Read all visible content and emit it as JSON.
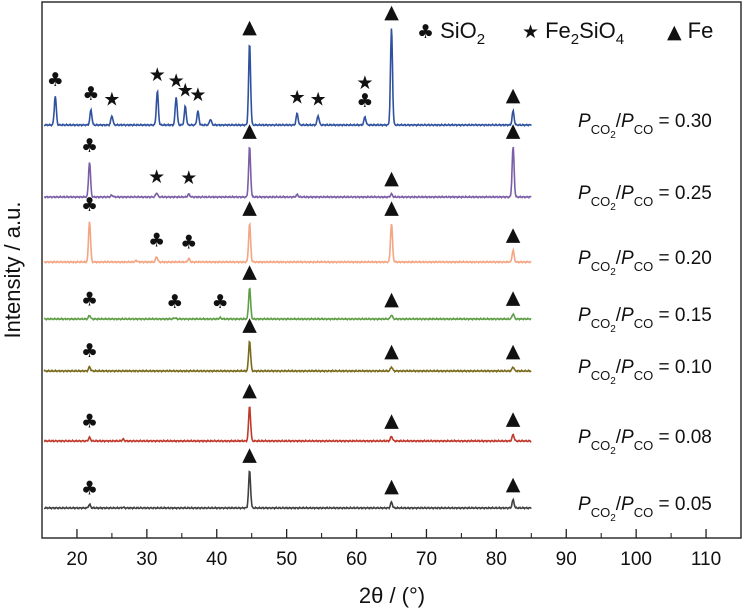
{
  "chart_data": {
    "type": "line",
    "xlabel": "2θ / (°)",
    "ylabel": "Intensity / a.u.",
    "xlim": [
      15,
      115
    ],
    "x_ticks": [
      20,
      30,
      40,
      50,
      60,
      70,
      80,
      90,
      100,
      110
    ],
    "legend": {
      "position": "top-right",
      "entries": [
        {
          "symbol": "♣",
          "label": "SiO",
          "sub": "2"
        },
        {
          "symbol": "★",
          "label": "Fe",
          "sub": "2",
          "label2": "SiO",
          "sub2": "4"
        },
        {
          "symbol": "▲",
          "label": "Fe"
        }
      ]
    },
    "series": [
      {
        "ratio": "0.05",
        "color": "#404040",
        "peaks": [
          [
            21.8,
            0.3
          ],
          [
            26.6,
            0.06
          ],
          [
            44.7,
            3.2
          ],
          [
            65.0,
            0.5
          ],
          [
            82.4,
            0.7
          ]
        ],
        "markers": [
          [
            "club",
            21.8
          ],
          [
            "triangle",
            44.7
          ],
          [
            "triangle",
            65.0
          ],
          [
            "triangle",
            82.4
          ]
        ]
      },
      {
        "ratio": "0.08",
        "color": "#c0392b",
        "peaks": [
          [
            21.8,
            0.3
          ],
          [
            26.6,
            0.15
          ],
          [
            44.7,
            3.0
          ],
          [
            65.0,
            0.4
          ],
          [
            82.4,
            0.55
          ]
        ],
        "markers": [
          [
            "club",
            21.8
          ],
          [
            "triangle",
            44.7
          ],
          [
            "triangle",
            65.0
          ],
          [
            "triangle",
            82.4
          ]
        ]
      },
      {
        "ratio": "0.10",
        "color": "#7a6a1a",
        "peaks": [
          [
            21.8,
            0.35
          ],
          [
            44.7,
            2.6
          ],
          [
            65.0,
            0.35
          ],
          [
            82.4,
            0.35
          ]
        ],
        "markers": [
          [
            "club",
            21.8
          ],
          [
            "triangle",
            44.7
          ],
          [
            "triangle",
            65.0
          ],
          [
            "triangle",
            82.4
          ]
        ]
      },
      {
        "ratio": "0.15",
        "color": "#5e9e45",
        "peaks": [
          [
            21.8,
            0.3
          ],
          [
            34.0,
            0.1
          ],
          [
            40.5,
            0.1
          ],
          [
            44.7,
            2.7
          ],
          [
            65.0,
            0.35
          ],
          [
            82.4,
            0.45
          ]
        ],
        "markers": [
          [
            "club",
            21.8
          ],
          [
            "club",
            34.0
          ],
          [
            "club",
            40.5
          ],
          [
            "triangle",
            44.7
          ],
          [
            "triangle",
            65.0
          ],
          [
            "triangle",
            82.4
          ]
        ]
      },
      {
        "ratio": "0.20",
        "color": "#f4a582",
        "peaks": [
          [
            21.8,
            3.5
          ],
          [
            28.5,
            0.12
          ],
          [
            31.4,
            0.45
          ],
          [
            36.0,
            0.3
          ],
          [
            44.7,
            3.3
          ],
          [
            65.0,
            3.3
          ],
          [
            82.4,
            1.0
          ]
        ],
        "markers": [
          [
            "club",
            21.8
          ],
          [
            "club",
            31.4
          ],
          [
            "club",
            36.0
          ],
          [
            "triangle",
            44.7
          ],
          [
            "triangle",
            65.0
          ],
          [
            "triangle",
            82.4
          ]
        ]
      },
      {
        "ratio": "0.25",
        "color": "#7b5ea7",
        "peaks": [
          [
            21.8,
            3.0
          ],
          [
            25.0,
            0.15
          ],
          [
            31.4,
            0.35
          ],
          [
            36.0,
            0.25
          ],
          [
            44.7,
            4.3
          ],
          [
            51.5,
            0.2
          ],
          [
            65.0,
            0.25
          ],
          [
            82.4,
            4.3
          ]
        ],
        "markers": [
          [
            "club",
            21.8
          ],
          [
            "star",
            31.4
          ],
          [
            "star",
            36.0
          ],
          [
            "triangle",
            44.7
          ],
          [
            "triangle",
            65.0
          ],
          [
            "triangle",
            82.4
          ]
        ]
      },
      {
        "ratio": "0.30",
        "color": "#2f52a0",
        "peaks": [
          [
            16.9,
            2.5
          ],
          [
            22.0,
            1.3
          ],
          [
            25.0,
            0.8
          ],
          [
            31.5,
            2.9
          ],
          [
            34.2,
            2.4
          ],
          [
            35.5,
            1.6
          ],
          [
            37.3,
            1.2
          ],
          [
            39.1,
            0.5
          ],
          [
            44.7,
            7.0
          ],
          [
            51.5,
            1.0
          ],
          [
            54.5,
            0.8
          ],
          [
            61.2,
            0.7
          ],
          [
            65.0,
            8.3
          ],
          [
            82.4,
            1.2
          ]
        ],
        "markers": [
          [
            "club",
            16.9
          ],
          [
            "club",
            22.0
          ],
          [
            "star",
            25.0
          ],
          [
            "star",
            31.5
          ],
          [
            "star",
            34.2
          ],
          [
            "star",
            35.5
          ],
          [
            "star",
            37.3
          ],
          [
            "triangle",
            44.7
          ],
          [
            "star",
            51.5
          ],
          [
            "star",
            54.5
          ],
          [
            "club",
            61.2
          ],
          [
            "star",
            61.2
          ],
          [
            "triangle",
            65.0
          ],
          [
            "triangle",
            82.4
          ]
        ]
      }
    ]
  }
}
